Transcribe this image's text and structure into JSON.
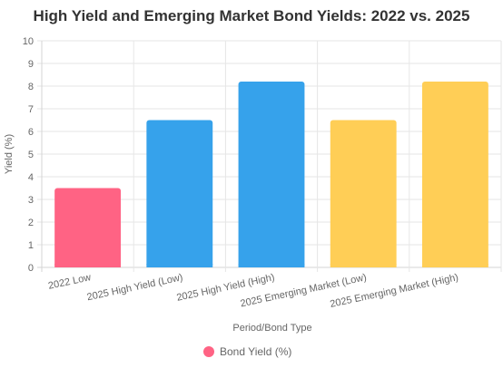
{
  "chart_data": {
    "type": "bar",
    "title": "High Yield and Emerging Market Bond Yields: 2022 vs. 2025",
    "xlabel": "Period/Bond Type",
    "ylabel": "Yield (%)",
    "ylim": [
      0,
      10
    ],
    "yticks": [
      "0",
      "1",
      "2",
      "3",
      "4",
      "5",
      "6",
      "7",
      "8",
      "9",
      "10"
    ],
    "categories": [
      "2022 Low",
      "2025 High Yield (Low)",
      "2025 High Yield (High)",
      "2025 Emerging Market (Low)",
      "2025 Emerging Market (High)"
    ],
    "series": [
      {
        "name": "Bond Yield (%)",
        "values": [
          3.5,
          6.5,
          8.2,
          6.5,
          8.2
        ]
      }
    ],
    "bar_colors": [
      "#ff6384",
      "#36a2eb",
      "#36a2eb",
      "#ffce56",
      "#ffce56"
    ],
    "legend_color": "#ff6384",
    "grid": true,
    "legend_position": "bottom"
  }
}
